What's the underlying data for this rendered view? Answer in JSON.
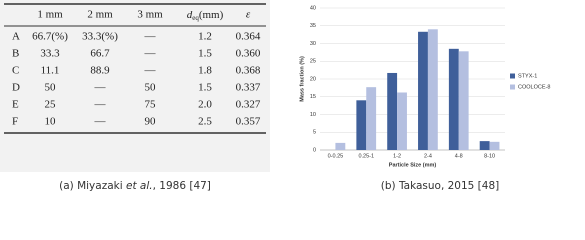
{
  "table": {
    "header": [
      "1 mm",
      "2 mm",
      "3 mm",
      {
        "main": "d",
        "sub": "eq",
        "unit": "(mm)"
      },
      "ε"
    ],
    "rows": [
      [
        "A",
        "66.7(%)",
        "33.3(%)",
        "—",
        "1.2",
        "0.364"
      ],
      [
        "B",
        "33.3",
        "66.7",
        "—",
        "1.5",
        "0.360"
      ],
      [
        "C",
        "11.1",
        "88.9",
        "—",
        "1.8",
        "0.368"
      ],
      [
        "D",
        "50",
        "—",
        "50",
        "1.5",
        "0.337"
      ],
      [
        "E",
        "25",
        "—",
        "75",
        "2.0",
        "0.327"
      ],
      [
        "F",
        "10",
        "—",
        "90",
        "2.5",
        "0.357"
      ]
    ]
  },
  "captions": [
    {
      "label": "(a)",
      "author": "Miyazaki",
      "etal": "et al.",
      "rest": ", 1986 [47]"
    },
    {
      "label": "(b)",
      "author": "Takasuo, 2015 [48]"
    }
  ],
  "chart_data": {
    "type": "bar",
    "y_label": "Mass fraction (%)",
    "x_label": "Particle Size (mm)",
    "categories": [
      "0-0.25",
      "0.25-1",
      "1-2",
      "2-4",
      "4-8",
      "8-10"
    ],
    "series": [
      {
        "name": "STYX-1",
        "color": "#3f5f9a",
        "values": [
          0,
          14,
          21.7,
          33.3,
          28.5,
          2.5
        ]
      },
      {
        "name": "COOLOCE-8",
        "color": "#b4bfe0",
        "values": [
          2,
          17.7,
          16.2,
          34,
          27.8,
          2.3
        ]
      }
    ],
    "ylim": [
      0,
      40
    ],
    "yticks": [
      0,
      5,
      10,
      15,
      20,
      25,
      30,
      35,
      40
    ],
    "grid": true,
    "legend": "right"
  }
}
